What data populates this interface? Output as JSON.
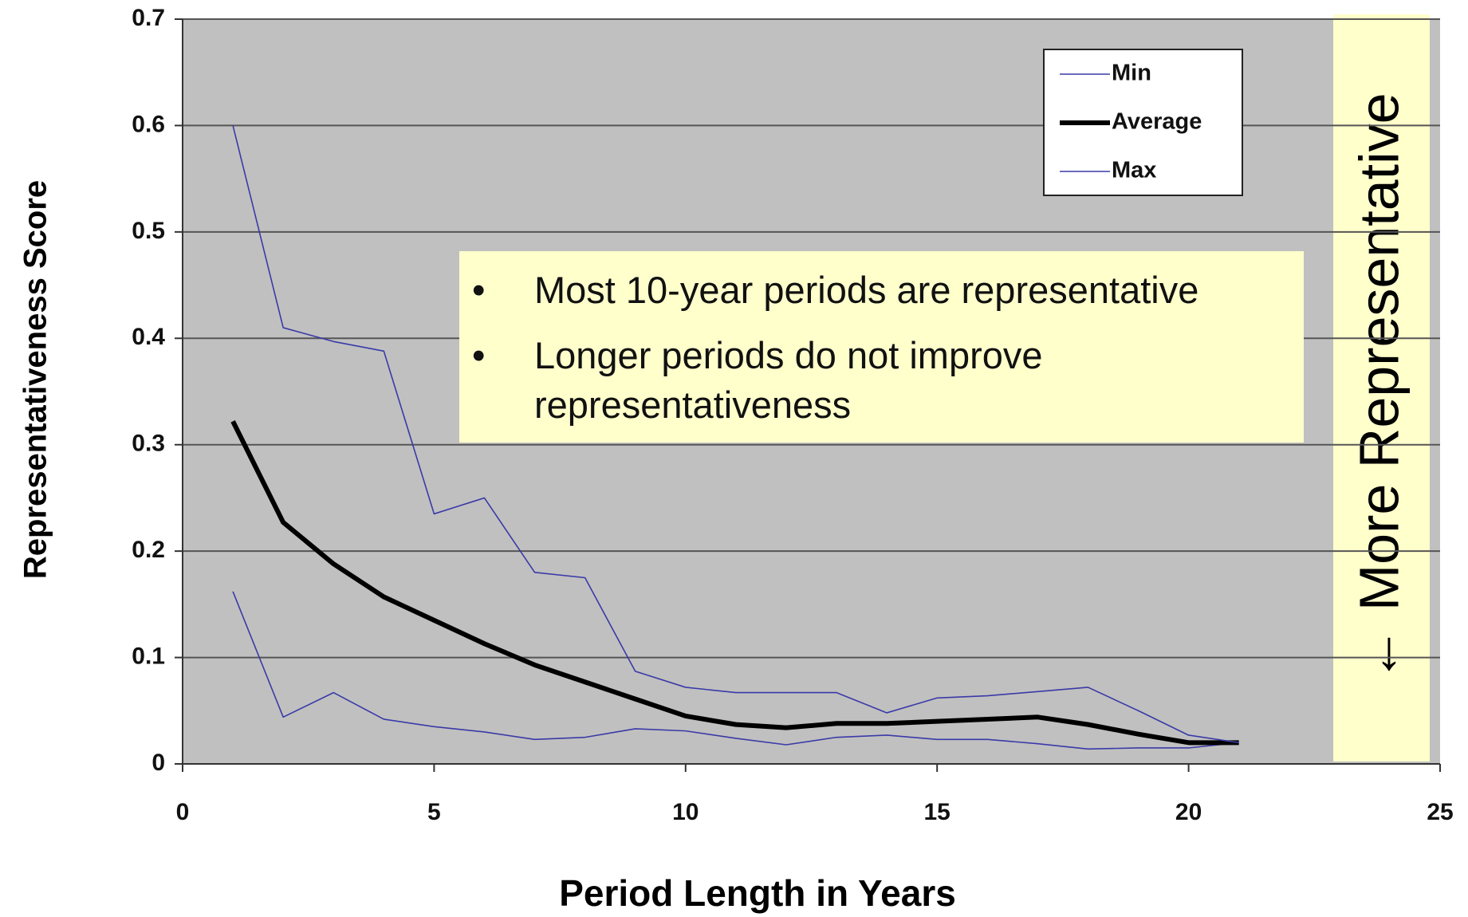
{
  "chart_data": {
    "type": "line",
    "x_label": "Period Length in Years",
    "y_label": "Representativeness Score",
    "x": [
      1,
      2,
      3,
      4,
      5,
      6,
      7,
      8,
      9,
      10,
      11,
      12,
      13,
      14,
      15,
      16,
      17,
      18,
      19,
      20,
      21
    ],
    "series": [
      {
        "name": "Min",
        "color": "#3a3aa8",
        "values": [
          0.162,
          0.044,
          0.067,
          0.042,
          0.035,
          0.03,
          0.023,
          0.025,
          0.033,
          0.031,
          0.024,
          0.018,
          0.025,
          0.027,
          0.023,
          0.023,
          0.019,
          0.014,
          0.015,
          0.015,
          0.02
        ]
      },
      {
        "name": "Average",
        "color": "#000000",
        "values": [
          0.322,
          0.227,
          0.188,
          0.157,
          0.135,
          0.113,
          0.093,
          0.077,
          0.061,
          0.045,
          0.037,
          0.034,
          0.038,
          0.038,
          0.04,
          0.042,
          0.044,
          0.037,
          0.028,
          0.02,
          0.02
        ]
      },
      {
        "name": "Max",
        "color": "#3a3aa8",
        "values": [
          0.6,
          0.41,
          0.397,
          0.388,
          0.235,
          0.25,
          0.18,
          0.175,
          0.087,
          0.072,
          0.067,
          0.067,
          0.067,
          0.048,
          0.062,
          0.064,
          0.068,
          0.072,
          0.05,
          0.027,
          0.02
        ]
      }
    ],
    "xlim": [
      0,
      25
    ],
    "xticks": [
      0,
      5,
      10,
      15,
      20,
      25
    ],
    "ylim": [
      0,
      0.7
    ],
    "yticks": [
      0,
      0.1,
      0.2,
      0.3,
      0.4,
      0.5,
      0.6,
      0.7
    ],
    "grid": true,
    "notes": [
      "Most 10-year periods are representative",
      "Longer periods do not improve representativeness"
    ],
    "side_label": "← More Representative"
  }
}
